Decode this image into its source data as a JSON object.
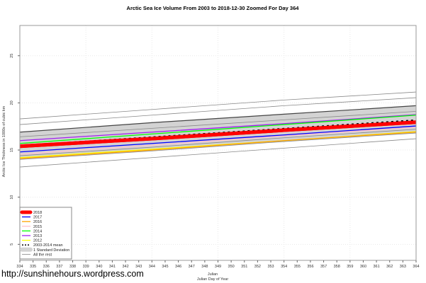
{
  "watermark": "http://sunshinehours.wordpress.com",
  "chart_data": {
    "type": "line",
    "title": "Arctic Sea Ice Volume From 2003 to 2018-12-30 Zoomed For Day 364",
    "xlabel": "Julian",
    "xlabel2": "Julian Day of Year",
    "ylabel": "Arctic Ice Thickness in 1000s of cubic km",
    "xlim": [
      334,
      364
    ],
    "ylim": [
      3,
      29
    ],
    "xticks": [
      334,
      335,
      336,
      337,
      338,
      339,
      340,
      341,
      342,
      343,
      344,
      345,
      346,
      347,
      348,
      349,
      350,
      351,
      352,
      353,
      354,
      355,
      356,
      357,
      358,
      359,
      360,
      361,
      362,
      363,
      364
    ],
    "yticks": [
      5,
      10,
      15,
      20,
      25
    ],
    "grid": true,
    "legend_position": "bottom-left",
    "x": [
      334,
      344,
      354,
      364
    ],
    "std_band": {
      "name": "1 Standard Deviation",
      "lower": [
        14.0,
        14.9,
        15.9,
        16.8
      ],
      "upper": [
        16.9,
        17.9,
        18.8,
        19.7
      ],
      "color": "#d3d3d3"
    },
    "rest": [
      {
        "values": [
          18.3,
          19.3,
          20.3,
          21.15
        ]
      },
      {
        "values": [
          17.7,
          18.7,
          19.7,
          20.55
        ]
      },
      {
        "values": [
          16.9,
          17.9,
          18.8,
          19.7
        ]
      },
      {
        "values": [
          16.4,
          17.3,
          18.2,
          19.1
        ]
      },
      {
        "values": [
          14.4,
          15.3,
          16.3,
          17.2
        ]
      },
      {
        "values": [
          14.0,
          14.9,
          15.9,
          16.8
        ]
      },
      {
        "values": [
          13.2,
          14.2,
          15.2,
          16.2
        ]
      }
    ],
    "series": [
      {
        "name": "2018",
        "color": "#ff0000",
        "width": 5,
        "values": [
          15.4,
          16.2,
          17.1,
          17.95
        ]
      },
      {
        "name": "2017",
        "color": "#0000ff",
        "width": 1.3,
        "values": [
          14.8,
          15.7,
          16.6,
          17.55
        ]
      },
      {
        "name": "2016",
        "color": "#ffa500",
        "width": 1.3,
        "values": [
          14.1,
          15.0,
          16.0,
          16.9
        ]
      },
      {
        "name": "2015",
        "color": "#ffc0cb",
        "width": 1.3,
        "values": [
          14.55,
          15.5,
          16.5,
          17.4
        ]
      },
      {
        "name": "2014",
        "color": "#00ff00",
        "width": 1.3,
        "values": [
          15.7,
          16.7,
          17.7,
          18.7
        ]
      },
      {
        "name": "2013",
        "color": "#a020f0",
        "width": 1.3,
        "values": [
          16.0,
          16.9,
          17.8,
          18.75
        ]
      },
      {
        "name": "2012",
        "color": "#ffff00",
        "width": 1.3,
        "values": [
          14.2,
          15.1,
          16.0,
          16.95
        ]
      }
    ],
    "mean": {
      "name": "2003-2014 mean",
      "values": [
        15.45,
        16.35,
        17.25,
        18.15
      ]
    },
    "rest_label": "All the rest"
  }
}
